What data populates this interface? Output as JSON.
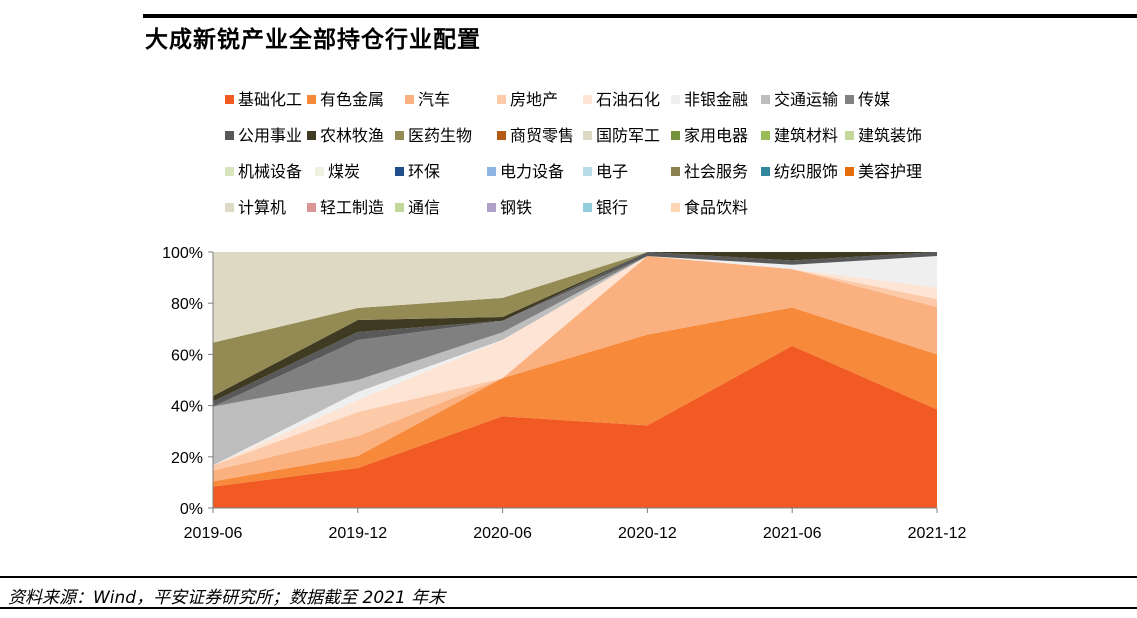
{
  "page": {
    "title": "大成新锐产业全部持仓行业配置",
    "source": "资料来源：Wind，平安证券研究所；数据截至 2021 年末"
  },
  "chart_data": {
    "type": "area",
    "stacked": true,
    "normalized": true,
    "title": "大成新锐产业全部持仓行业配置",
    "categories": [
      "2019-06",
      "2019-12",
      "2020-06",
      "2020-12",
      "2021-06",
      "2021-12"
    ],
    "ylim": [
      0,
      100
    ],
    "y_ticks": [
      "0%",
      "20%",
      "40%",
      "60%",
      "80%",
      "100%"
    ],
    "grid": false,
    "legend_position": "top",
    "series": [
      {
        "name": "基础化工",
        "color": "#F15A22",
        "values": [
          4,
          10,
          24,
          20,
          38,
          25
        ]
      },
      {
        "name": "有色金属",
        "color": "#F7893B",
        "values": [
          1,
          3,
          10,
          22,
          9,
          14
        ]
      },
      {
        "name": "汽车",
        "color": "#FAB17F",
        "values": [
          2,
          5,
          0,
          19,
          9,
          12
        ]
      },
      {
        "name": "房地产",
        "color": "#FCCAA8",
        "values": [
          1,
          6,
          0,
          0,
          0,
          2
        ]
      },
      {
        "name": "石油石化",
        "color": "#FDE4D4",
        "values": [
          0,
          3,
          10,
          0,
          0,
          3
        ]
      },
      {
        "name": "非银金融",
        "color": "#EFEFEF",
        "values": [
          0,
          2,
          0,
          0,
          1,
          8
        ]
      },
      {
        "name": "交通运输",
        "color": "#BDBDBD",
        "values": [
          11,
          3,
          2,
          0,
          0,
          0
        ]
      },
      {
        "name": "传媒",
        "color": "#808080",
        "values": [
          0,
          10,
          3,
          0,
          0,
          0
        ]
      },
      {
        "name": "公用事业",
        "color": "#595959",
        "values": [
          1,
          2,
          0,
          1,
          1,
          1
        ]
      },
      {
        "name": "农林牧渔",
        "color": "#3F3A22",
        "values": [
          1,
          3,
          1,
          0,
          2,
          0
        ]
      },
      {
        "name": "医药生物",
        "color": "#948A54",
        "values": [
          10,
          3,
          5,
          0,
          0,
          0
        ]
      },
      {
        "name": "商贸零售",
        "color": "#B35A12",
        "values": [
          0,
          0,
          0,
          0,
          0,
          0
        ]
      },
      {
        "name": "国防军工",
        "color": "#DDD9C3",
        "values": [
          17,
          14,
          12,
          0,
          0,
          0
        ]
      },
      {
        "name": "家用电器",
        "color": "#76933C",
        "values": [
          0,
          0,
          0,
          0,
          0,
          0
        ]
      },
      {
        "name": "建筑材料",
        "color": "#9BBB59",
        "values": [
          0,
          0,
          0,
          0,
          0,
          0
        ]
      },
      {
        "name": "建筑装饰",
        "color": "#C4D79B",
        "values": [
          0,
          0,
          0,
          0,
          0,
          0
        ]
      },
      {
        "name": "机械设备",
        "color": "#D8E4BC",
        "values": [
          0,
          0,
          0,
          0,
          0,
          0
        ]
      },
      {
        "name": "煤炭",
        "color": "#EEF3E1",
        "values": [
          0,
          0,
          0,
          0,
          0,
          0
        ]
      },
      {
        "name": "环保",
        "color": "#1F4E8C",
        "values": [
          0,
          0,
          0,
          0,
          0,
          0
        ]
      },
      {
        "name": "电力设备",
        "color": "#8DB4E2",
        "values": [
          0,
          0,
          0,
          0,
          0,
          0
        ]
      },
      {
        "name": "电子",
        "color": "#B7DEE8",
        "values": [
          0,
          0,
          0,
          0,
          0,
          0
        ]
      },
      {
        "name": "社会服务",
        "color": "#8B8250",
        "values": [
          0,
          0,
          0,
          0,
          0,
          0
        ]
      },
      {
        "name": "纺织服饰",
        "color": "#31859C",
        "values": [
          0,
          0,
          0,
          0,
          0,
          0
        ]
      },
      {
        "name": "美容护理",
        "color": "#E46C0A",
        "values": [
          0,
          0,
          0,
          0,
          0,
          0
        ]
      },
      {
        "name": "计算机",
        "color": "#DDD9C4",
        "values": [
          0,
          0,
          0,
          0,
          0,
          0
        ]
      },
      {
        "name": "轻工制造",
        "color": "#DA9694",
        "values": [
          0,
          0,
          0,
          0,
          0,
          0
        ]
      },
      {
        "name": "通信",
        "color": "#C4D79B",
        "values": [
          0,
          0,
          0,
          0,
          0,
          0
        ]
      },
      {
        "name": "钢铁",
        "color": "#B1A0C7",
        "values": [
          0,
          0,
          0,
          0,
          0,
          0
        ]
      },
      {
        "name": "银行",
        "color": "#92CDDC",
        "values": [
          0,
          0,
          0,
          0,
          0,
          0
        ]
      },
      {
        "name": "食品饮料",
        "color": "#FCD5B4",
        "values": [
          0,
          0,
          0,
          0,
          0,
          0
        ]
      }
    ]
  }
}
